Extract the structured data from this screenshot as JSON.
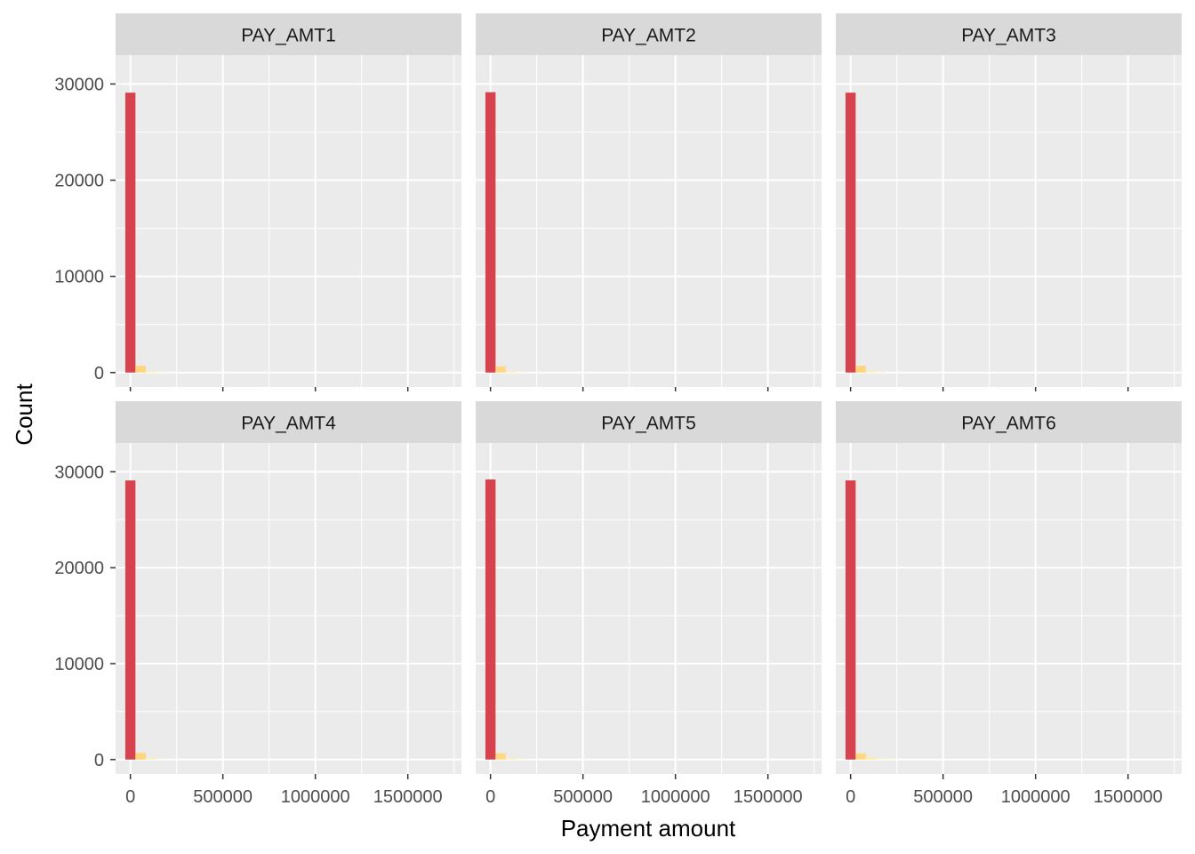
{
  "chart_data": {
    "type": "bar",
    "xlabel": "Payment amount",
    "ylabel": "Count",
    "xlim": [
      -80000,
      1790000
    ],
    "ylim": [
      -1500,
      33000
    ],
    "x_ticks": [
      0,
      500000,
      1000000,
      1500000
    ],
    "x_tick_labels": [
      "0",
      "500000",
      "1000000",
      "1500000"
    ],
    "y_ticks": [
      0,
      10000,
      20000,
      30000
    ],
    "y_tick_labels": [
      "0",
      "10000",
      "20000",
      "30000"
    ],
    "grid": true,
    "bin_width": 55000,
    "fill_low": "#D7424F",
    "fill_high": "#FFF7B0",
    "fill_mid": "#FFD37A",
    "panel_bg": "#EBEBEB",
    "strip_bg": "#D9D9D9",
    "grid_color": "#FFFFFF",
    "panels": [
      {
        "name": "PAY_AMT1",
        "bins": [
          0,
          55000,
          110000,
          165000
        ],
        "counts": [
          29100,
          700,
          120,
          30
        ]
      },
      {
        "name": "PAY_AMT2",
        "bins": [
          0,
          55000,
          110000,
          165000
        ],
        "counts": [
          29150,
          650,
          110,
          30
        ]
      },
      {
        "name": "PAY_AMT3",
        "bins": [
          0,
          55000,
          110000,
          165000
        ],
        "counts": [
          29100,
          700,
          130,
          30
        ]
      },
      {
        "name": "PAY_AMT4",
        "bins": [
          0,
          55000,
          110000,
          165000
        ],
        "counts": [
          29100,
          700,
          120,
          30
        ]
      },
      {
        "name": "PAY_AMT5",
        "bins": [
          0,
          55000,
          110000,
          165000
        ],
        "counts": [
          29200,
          650,
          120,
          30
        ]
      },
      {
        "name": "PAY_AMT6",
        "bins": [
          0,
          55000,
          110000,
          165000,
          220000
        ],
        "counts": [
          29100,
          650,
          220,
          60,
          20
        ]
      }
    ]
  }
}
